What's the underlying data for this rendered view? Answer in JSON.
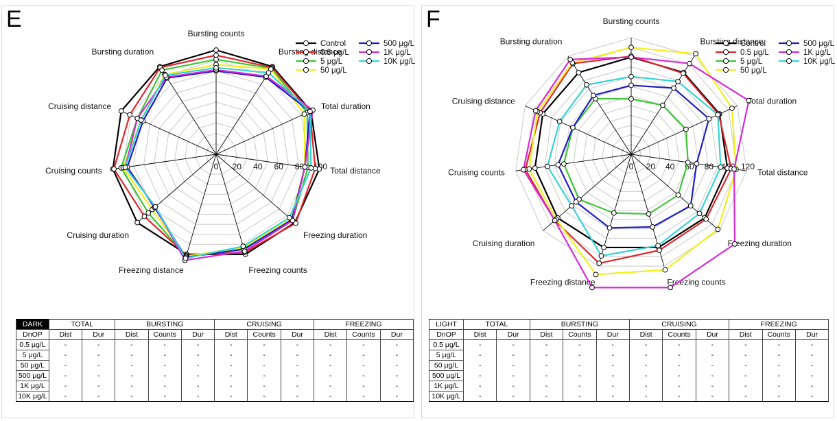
{
  "chart_data": [
    {
      "type": "radar",
      "panel_label": "E",
      "axes": [
        "Bursting counts",
        "Bursting distance",
        "Total duration",
        "Total distance",
        "Freezing duration",
        "Freezing counts",
        "Freezing distance",
        "Cruising duration",
        "Cruising counts",
        "Cruising distance",
        "Bursting duration"
      ],
      "rmax": 100,
      "tick_labels": [
        "0",
        "20",
        "40",
        "60",
        "80",
        "100"
      ],
      "tick_values": [
        0,
        20,
        40,
        60,
        80,
        100
      ],
      "grid": true,
      "legend_position": "top-right",
      "series": [
        {
          "name": "Control",
          "color": "#000000",
          "values": [
            100,
            100,
            100,
            100,
            100,
            100,
            100,
            100,
            100,
            100,
            100
          ]
        },
        {
          "name": "0.5 μg/L",
          "color": "#e0262b",
          "values": [
            95,
            99,
            99,
            96,
            101,
            98,
            101,
            91,
            99,
            91,
            99
          ]
        },
        {
          "name": "5 μg/L",
          "color": "#3dc636",
          "values": [
            91,
            98,
            96,
            89,
            97,
            94,
            102,
            86,
            92,
            83,
            96
          ]
        },
        {
          "name": "50 μg/L",
          "color": "#f2ef1e",
          "values": [
            86,
            97,
            93,
            86,
            95,
            93,
            102,
            81,
            90,
            79,
            91
          ]
        },
        {
          "name": "500 μg/L",
          "color": "#1c1cc4",
          "values": [
            80,
            88,
            99,
            86,
            96,
            95,
            103,
            78,
            86,
            77,
            87
          ]
        },
        {
          "name": "1K μg/L",
          "color": "#d62ad6",
          "values": [
            81,
            89,
            102,
            86,
            97,
            97,
            106,
            77,
            88,
            83,
            88
          ]
        },
        {
          "name": "10K μg/L",
          "color": "#35d3d3",
          "values": [
            83,
            93,
            99,
            92,
            93,
            92,
            104,
            77,
            88,
            79,
            90
          ]
        }
      ]
    },
    {
      "type": "radar",
      "panel_label": "F",
      "axes": [
        "Bursting counts",
        "Bursting distance",
        "Total duration",
        "Total distance",
        "Freezing duration",
        "Freezing counts",
        "Freezing distance",
        "Cruising duration",
        "Cruising counts",
        "Cruising distance",
        "Bursting duration"
      ],
      "rmax": 120,
      "tick_labels": [
        "0",
        "20",
        "40",
        "60",
        "80",
        "100",
        "120"
      ],
      "tick_values": [
        0,
        20,
        40,
        60,
        80,
        100,
        120
      ],
      "grid": true,
      "legend_position": "top-right",
      "series": [
        {
          "name": "Control",
          "color": "#000000",
          "values": [
            100,
            100,
            100,
            100,
            100,
            100,
            100,
            100,
            100,
            100,
            100
          ]
        },
        {
          "name": "0.5 μg/L",
          "color": "#e0262b",
          "values": [
            101,
            99,
            99,
            104,
            102,
            103,
            117,
            104,
            110,
            103,
            111
          ]
        },
        {
          "name": "5 μg/L",
          "color": "#3dc636",
          "values": [
            57,
            60,
            62,
            59,
            64,
            64,
            63,
            71,
            70,
            66,
            68
          ]
        },
        {
          "name": "50 μg/L",
          "color": "#f2ef1e",
          "values": [
            110,
            123,
            114,
            109,
            118,
            124,
            129,
            102,
            106,
            106,
            112
          ]
        },
        {
          "name": "500 μg/L",
          "color": "#1c1cc4",
          "values": [
            71,
            81,
            88,
            68,
            81,
            78,
            79,
            75,
            76,
            66,
            72
          ]
        },
        {
          "name": "1K μg/L",
          "color": "#d62ad6",
          "values": [
            100,
            111,
            133,
            107,
            141,
            143,
            143,
            104,
            112,
            108,
            116
          ]
        },
        {
          "name": "10K μg/L",
          "color": "#35d3d3",
          "values": [
            80,
            89,
            98,
            93,
            93,
            98,
            109,
            81,
            87,
            81,
            85
          ]
        }
      ]
    }
  ],
  "tables": [
    {
      "condition": "DARK",
      "groups": [
        "TOTAL",
        "BURSTING",
        "CRUISING",
        "FREEZING"
      ],
      "row_header": "DnOP",
      "subheaders": [
        "Dist",
        "Dur",
        "Dist",
        "Counts",
        "Dur",
        "Dist",
        "Counts",
        "Dur",
        "Dist",
        "Counts",
        "Dur"
      ],
      "rows": [
        {
          "label": "0.5 μg/L",
          "cells": [
            "-",
            "-",
            "-",
            "-",
            "-",
            "-",
            "-",
            "-",
            "-",
            "-",
            "-"
          ]
        },
        {
          "label": "5 μg/L",
          "cells": [
            "-",
            "-",
            "-",
            "-",
            "-",
            "-",
            "-",
            "-",
            "-",
            "-",
            "-"
          ]
        },
        {
          "label": "50 μg/L",
          "cells": [
            "-",
            "-",
            "-",
            "-",
            "-",
            "-",
            "-",
            "-",
            "-",
            "-",
            "-"
          ]
        },
        {
          "label": "500 μg/L",
          "cells": [
            "-",
            "-",
            "-",
            "-",
            "-",
            "-",
            "-",
            "-",
            "-",
            "-",
            "-"
          ]
        },
        {
          "label": "1K μg/L",
          "cells": [
            "-",
            "-",
            "-",
            "-",
            "-",
            "-",
            "-",
            "-",
            "-",
            "-",
            "-"
          ]
        },
        {
          "label": "10K μg/L",
          "cells": [
            "-",
            "-",
            "-",
            "-",
            "-",
            "-",
            "-",
            "-",
            "-",
            "-",
            "-"
          ]
        }
      ]
    },
    {
      "condition": "LIGHT",
      "groups": [
        "TOTAL",
        "BURSTING",
        "CRUISING",
        "FREEZING"
      ],
      "row_header": "DnOP",
      "subheaders": [
        "Dist",
        "Dur",
        "Dist",
        "Counts",
        "Dur",
        "Dist",
        "Counts",
        "Dur",
        "Dist",
        "Counts",
        "Dur"
      ],
      "rows": [
        {
          "label": "0.5 μg/L",
          "cells": [
            "-",
            "-",
            "-",
            "-",
            "-",
            "-",
            "-",
            "-",
            "-",
            "-",
            "-"
          ]
        },
        {
          "label": "5 μg/L",
          "cells": [
            "-",
            "-",
            "-",
            "-",
            "-",
            "-",
            "-",
            "-",
            "-",
            "-",
            "-"
          ]
        },
        {
          "label": "50 μg/L",
          "cells": [
            "-",
            "-",
            "-",
            "-",
            "-",
            "-",
            "-",
            "-",
            "-",
            "-",
            "-"
          ]
        },
        {
          "label": "500 μg/L",
          "cells": [
            "-",
            "-",
            "-",
            "-",
            "-",
            "-",
            "-",
            "-",
            "-",
            "-",
            "-"
          ]
        },
        {
          "label": "1K μg/L",
          "cells": [
            "-",
            "-",
            "-",
            "-",
            "-",
            "-",
            "-",
            "-",
            "-",
            "-",
            "-"
          ]
        },
        {
          "label": "10K μg/L",
          "cells": [
            "-",
            "-",
            "-",
            "-",
            "-",
            "-",
            "-",
            "-",
            "-",
            "-",
            "-"
          ]
        }
      ]
    }
  ]
}
